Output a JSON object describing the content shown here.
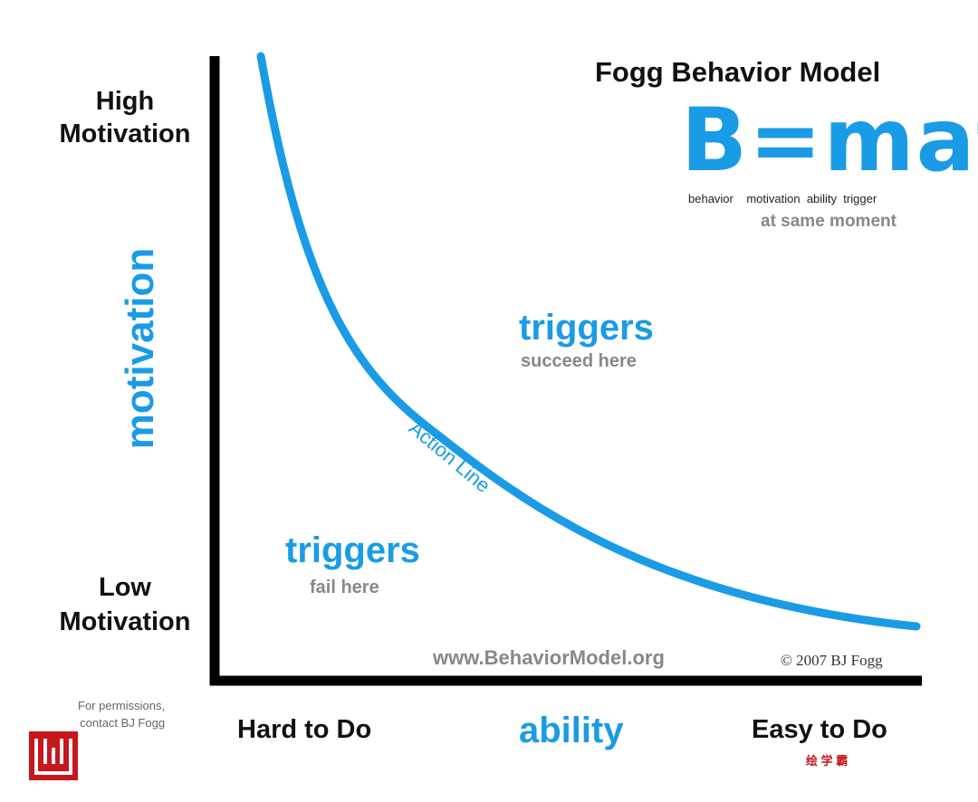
{
  "header": {
    "title": "Fogg Behavior Model",
    "formula": "B=mat",
    "formula_terms": [
      "behavior",
      "motivation",
      "ability",
      "trigger"
    ],
    "formula_note": "at same moment"
  },
  "axes": {
    "y_label": "motivation",
    "y_top": [
      "High",
      "Motivation"
    ],
    "y_bottom": [
      "Low",
      "Motivation"
    ],
    "x_label": "ability",
    "x_left": "Hard to Do",
    "x_right": "Easy to Do"
  },
  "regions": {
    "above": {
      "title": "triggers",
      "subtitle": "succeed here"
    },
    "below": {
      "title": "triggers",
      "subtitle": "fail here"
    }
  },
  "curve": {
    "label": "Action Line"
  },
  "footer": {
    "url": "www.BehaviorModel.org",
    "copyright": "© 2007 BJ Fogg",
    "permissions": [
      "For permissions,",
      "contact BJ Fogg"
    ],
    "watermark": "绘 学 霸"
  }
}
